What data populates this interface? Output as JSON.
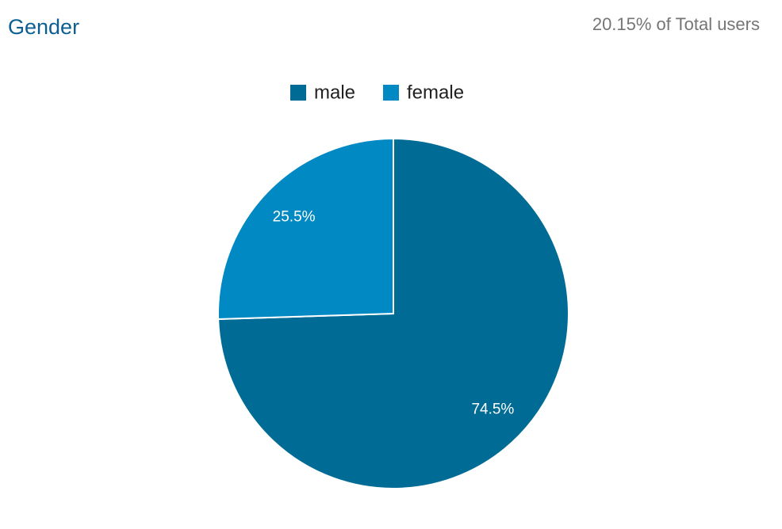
{
  "chart_data": {
    "type": "pie",
    "title": "Gender",
    "subtitle": "20.15% of Total users",
    "categories": [
      "male",
      "female"
    ],
    "values": [
      74.5,
      25.5
    ],
    "value_labels": [
      "74.5%",
      "25.5%"
    ],
    "colors": [
      "#006c95",
      "#0089c2"
    ],
    "legend": "top"
  }
}
